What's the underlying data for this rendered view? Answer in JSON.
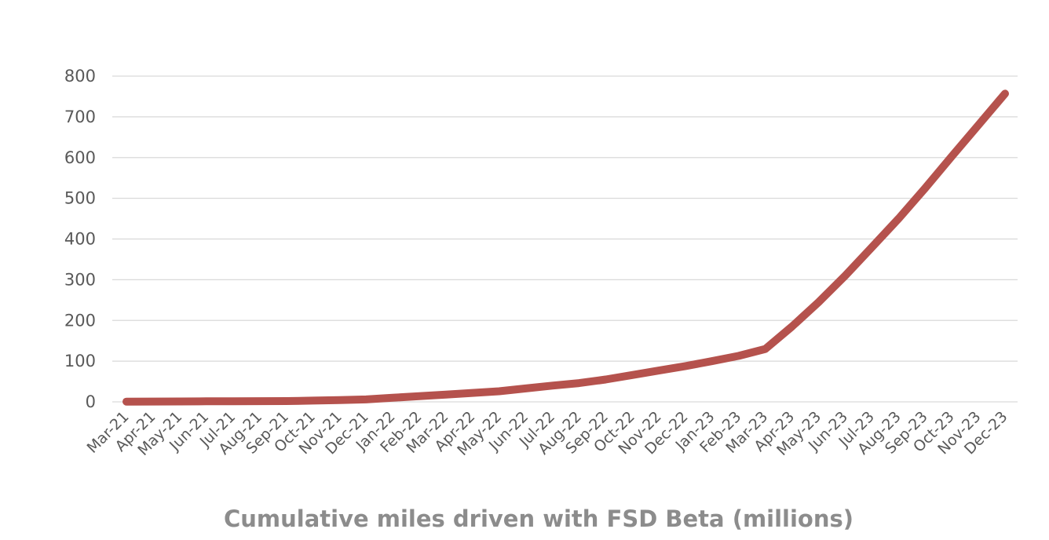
{
  "chart_data": {
    "type": "line",
    "title": "Cumulative miles driven with FSD Beta (millions)",
    "xlabel": "",
    "ylabel": "",
    "ylim": [
      0,
      800
    ],
    "yticks": [
      "0",
      "100",
      "200",
      "300",
      "400",
      "500",
      "600",
      "700",
      "800"
    ],
    "grid": true,
    "legend": "none",
    "categories": [
      "Mar-21",
      "Apr-21",
      "May-21",
      "Jun-21",
      "Jul-21",
      "Aug-21",
      "Sep-21",
      "Oct-21",
      "Nov-21",
      "Dec-21",
      "Jan-22",
      "Feb-22",
      "Mar-22",
      "Apr-22",
      "May-22",
      "Jun-22",
      "Jul-22",
      "Aug-22",
      "Sep-22",
      "Oct-22",
      "Nov-22",
      "Dec-22",
      "Jan-23",
      "Feb-23",
      "Mar-23",
      "Apr-23",
      "May-23",
      "Jun-23",
      "Jul-23",
      "Aug-23",
      "Sep-23",
      "Oct-23",
      "Nov-23",
      "Dec-23"
    ],
    "series": [
      {
        "name": "Cumulative miles driven with FSD Beta (millions)",
        "color": "#b5524d",
        "values": [
          0.5,
          0.8,
          1,
          1.3,
          1.5,
          1.8,
          2,
          3,
          4.5,
          6,
          10,
          14,
          18,
          22,
          26,
          33,
          40,
          46,
          55,
          66,
          77,
          88,
          100,
          113,
          130,
          185,
          245,
          310,
          380,
          450,
          525,
          603,
          680,
          757
        ]
      }
    ]
  }
}
